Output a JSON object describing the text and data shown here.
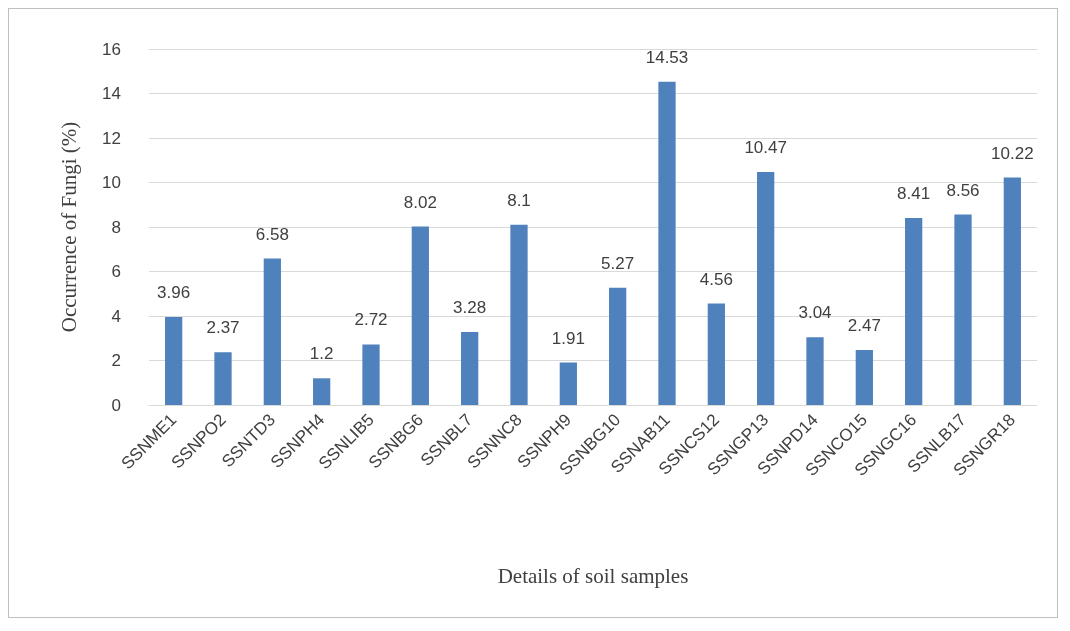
{
  "chart_data": {
    "type": "bar",
    "xlabel": "Details of soil samples",
    "ylabel": "Occurrence of Fungi (%)",
    "categories": [
      "SSNME1",
      "SSNPO2",
      "SSNTD3",
      "SSNPH4",
      "SSNLIB5",
      "SSNBG6",
      "SSNBL7",
      "SSNNC8",
      "SSNPH9",
      "SSNBG10",
      "SSNAB11",
      "SSNCS12",
      "SSNGP13",
      "SSNPD14",
      "SSNCO15",
      "SSNGC16",
      "SSNLB17",
      "SSNGR18"
    ],
    "values": [
      3.96,
      2.37,
      6.58,
      1.2,
      2.72,
      8.02,
      3.28,
      8.1,
      1.91,
      5.27,
      14.53,
      4.56,
      10.47,
      3.04,
      2.47,
      8.41,
      8.56,
      10.22
    ],
    "color": "#4f81bd",
    "ylim": [
      0,
      16
    ],
    "yticks": [
      0,
      2,
      4,
      6,
      8,
      10,
      12,
      14,
      16
    ],
    "grid": "y",
    "data_labels": true
  }
}
